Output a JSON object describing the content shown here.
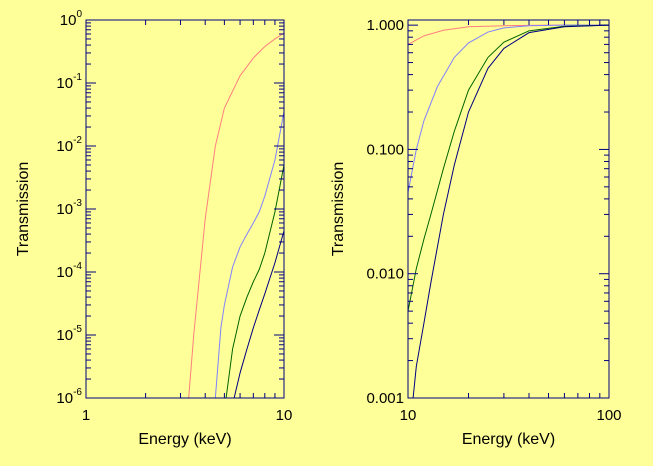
{
  "chart_data": [
    {
      "type": "line",
      "xlabel": "Energy (keV)",
      "ylabel": "Transmission",
      "xscale": "log",
      "yscale": "log",
      "xlim": [
        1,
        10
      ],
      "ylim": [
        1e-06,
        1
      ],
      "x_ticks": [
        {
          "label": "1",
          "value": 1
        },
        {
          "label": "10",
          "value": 10
        }
      ],
      "y_ticks": [
        {
          "base": "10",
          "exp": "-6",
          "value": 1e-06
        },
        {
          "base": "10",
          "exp": "-5",
          "value": 1e-05
        },
        {
          "base": "10",
          "exp": "-4",
          "value": 0.0001
        },
        {
          "base": "10",
          "exp": "-3",
          "value": 0.001
        },
        {
          "base": "10",
          "exp": "-2",
          "value": 0.01
        },
        {
          "base": "10",
          "exp": "-1",
          "value": 0.1
        },
        {
          "base": "10",
          "exp": "0",
          "value": 1
        }
      ],
      "grid": false,
      "series": [
        {
          "color": "#ff7f7f",
          "x": [
            3.3,
            3.5,
            4.0,
            4.5,
            5.0,
            6.0,
            7.0,
            8.0,
            9.0,
            10.0
          ],
          "y": [
            1e-06,
            1e-05,
            0.0007,
            0.01,
            0.04,
            0.13,
            0.25,
            0.38,
            0.5,
            0.62
          ]
        },
        {
          "color": "#8080ff",
          "x": [
            4.5,
            4.8,
            5.0,
            5.5,
            6.0,
            6.5,
            7.0,
            7.5,
            8.0,
            9.0,
            10.0
          ],
          "y": [
            1e-06,
            1.3e-05,
            3e-05,
            0.00012,
            0.00025,
            0.0004,
            0.0006,
            0.0009,
            0.0016,
            0.006,
            0.035
          ]
        },
        {
          "color": "#006400",
          "x": [
            5.1,
            5.5,
            6.0,
            6.5,
            7.0,
            7.5,
            8.0,
            9.0,
            10.0
          ],
          "y": [
            1e-06,
            6e-06,
            2e-05,
            4e-05,
            7e-05,
            0.00011,
            0.0002,
            0.0009,
            0.005
          ]
        },
        {
          "color": "#000080",
          "x": [
            5.6,
            6.0,
            6.5,
            7.0,
            7.5,
            8.0,
            9.0,
            10.0
          ],
          "y": [
            1e-06,
            2.5e-06,
            6e-06,
            1.3e-05,
            2.5e-05,
            4.5e-05,
            0.00014,
            0.00045
          ]
        }
      ]
    },
    {
      "type": "line",
      "xlabel": "Energy (keV)",
      "ylabel": "Transmission",
      "xscale": "log",
      "yscale": "log",
      "xlim": [
        10,
        100
      ],
      "ylim": [
        0.001,
        1.1
      ],
      "x_ticks": [
        {
          "label": "10",
          "value": 10
        },
        {
          "label": "100",
          "value": 100
        }
      ],
      "y_ticks": [
        {
          "label": "0.001",
          "value": 0.001
        },
        {
          "label": "0.010",
          "value": 0.01
        },
        {
          "label": "0.100",
          "value": 0.1
        },
        {
          "label": "1.000",
          "value": 1
        }
      ],
      "grid": false,
      "series": [
        {
          "color": "#ff7f7f",
          "x": [
            10,
            12,
            15,
            20,
            30,
            50,
            100
          ],
          "y": [
            0.7,
            0.82,
            0.91,
            0.97,
            0.99,
            1.0,
            1.0
          ]
        },
        {
          "color": "#8080ff",
          "x": [
            10,
            11,
            12,
            14,
            17,
            20,
            25,
            30,
            40,
            60,
            100
          ],
          "y": [
            0.045,
            0.1,
            0.17,
            0.32,
            0.55,
            0.72,
            0.88,
            0.95,
            0.99,
            1.0,
            1.0
          ]
        },
        {
          "color": "#006400",
          "x": [
            10,
            11,
            12,
            13,
            15,
            17,
            20,
            25,
            30,
            40,
            60,
            100
          ],
          "y": [
            0.005,
            0.011,
            0.019,
            0.03,
            0.07,
            0.14,
            0.3,
            0.55,
            0.73,
            0.9,
            0.98,
            1.0
          ]
        },
        {
          "color": "#000080",
          "x": [
            10.6,
            11,
            12,
            13,
            15,
            17,
            20,
            25,
            30,
            40,
            60,
            100
          ],
          "y": [
            0.001,
            0.0018,
            0.004,
            0.0085,
            0.03,
            0.075,
            0.2,
            0.45,
            0.65,
            0.87,
            0.97,
            1.0
          ]
        }
      ]
    }
  ]
}
